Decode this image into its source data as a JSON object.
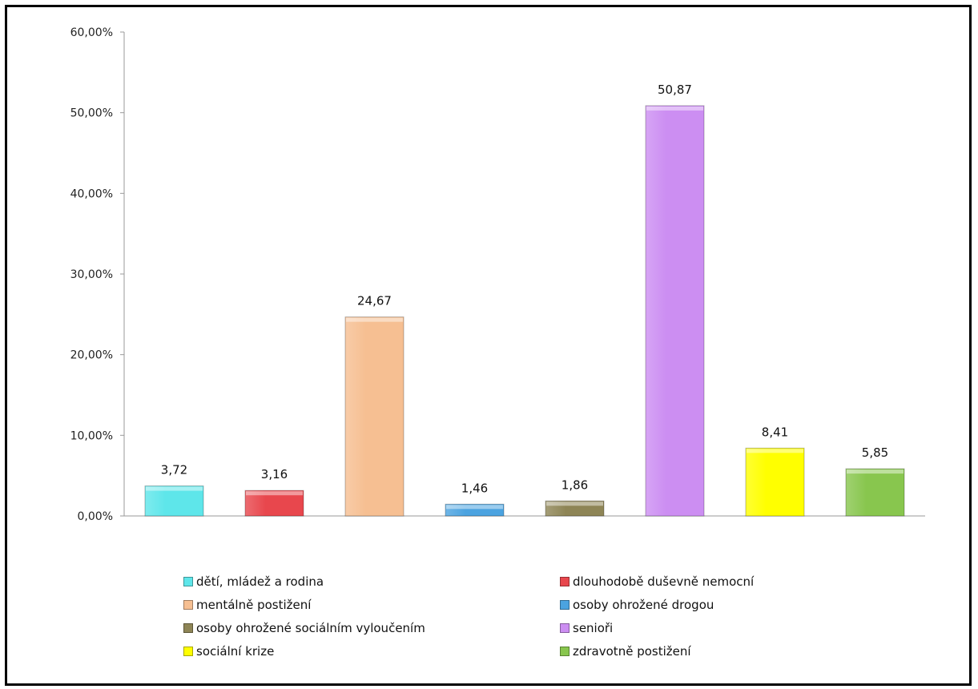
{
  "chart_data": {
    "type": "bar",
    "categories": [
      "dětí, mládež a rodina",
      "dlouhodobě duševně nemocní",
      "mentálně postižení",
      "osoby ohrožené drogou",
      "osoby ohrožené sociálním vyloučením",
      "senioři",
      "sociální krize",
      "zdravotně postižení"
    ],
    "values": [
      3.72,
      3.16,
      24.67,
      1.46,
      1.86,
      50.87,
      8.41,
      5.85
    ],
    "value_labels": [
      "3,72",
      "3,16",
      "24,67",
      "1,46",
      "1,86",
      "50,87",
      "8,41",
      "5,85"
    ],
    "colors": [
      "#5ee6ea",
      "#e8474d",
      "#f6bf92",
      "#4ba3e0",
      "#8e8556",
      "#cc8ef2",
      "#ffff00",
      "#88c64e"
    ],
    "ylim": [
      0,
      60
    ],
    "yticks": [
      0,
      10,
      20,
      30,
      40,
      50,
      60
    ],
    "ytick_labels": [
      "0,00%",
      "10,00%",
      "20,00%",
      "30,00%",
      "40,00%",
      "50,00%",
      "60,00%"
    ],
    "legend_position": "bottom",
    "grid": false
  }
}
